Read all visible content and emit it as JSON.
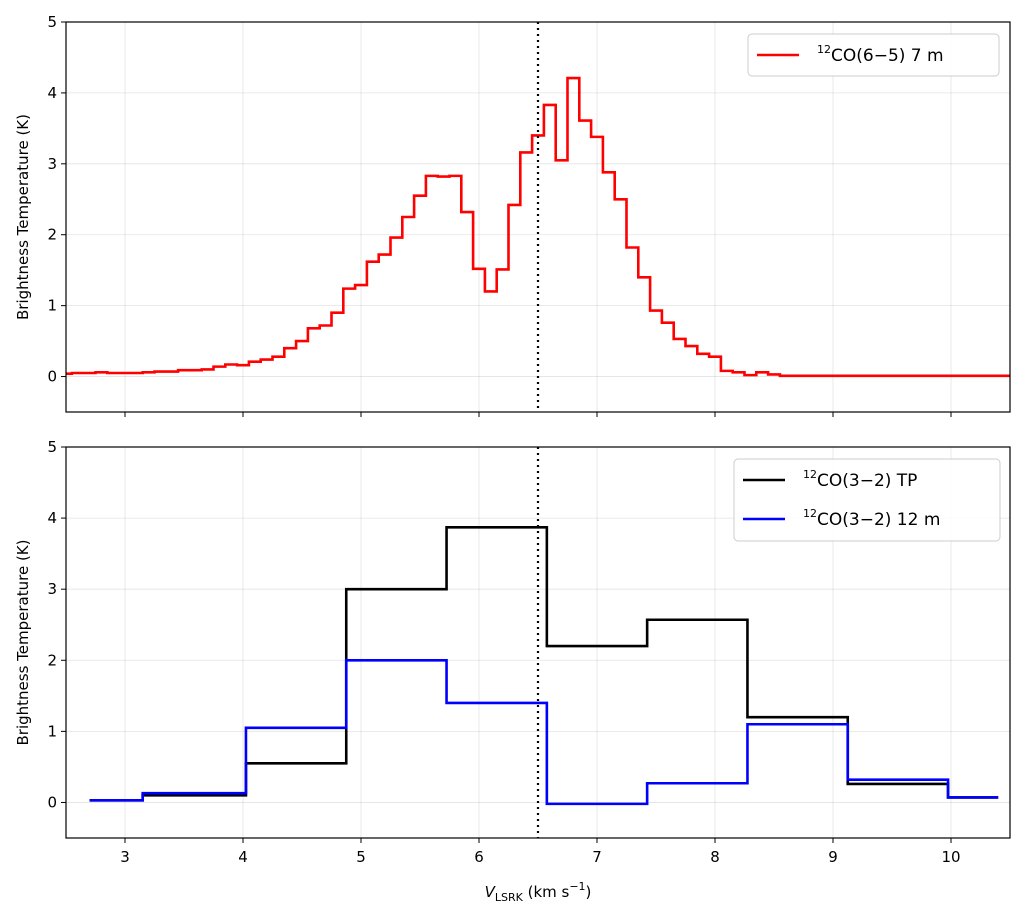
{
  "chart_data": [
    {
      "type": "line",
      "drawstyle": "steps-mid",
      "ylabel": "Brightness Temperature (K)",
      "xlim": [
        2.5,
        10.5
      ],
      "ylim": [
        -0.5,
        5
      ],
      "xticks": [
        3,
        4,
        5,
        6,
        7,
        8,
        9,
        10
      ],
      "yticks": [
        0,
        1,
        2,
        3,
        4,
        5
      ],
      "grid": true,
      "legend_position": "top-right",
      "vline": {
        "x": 6.5,
        "style": "dotted",
        "color": "#000000"
      },
      "series": [
        {
          "name": "CO(6−5) 7 m",
          "name_sup": "12",
          "color": "#ff0000",
          "x": [
            2.5,
            2.6,
            2.7,
            2.8,
            2.9,
            3.0,
            3.1,
            3.2,
            3.3,
            3.4,
            3.5,
            3.6,
            3.7,
            3.8,
            3.9,
            4.0,
            4.1,
            4.2,
            4.3,
            4.4,
            4.5,
            4.6,
            4.7,
            4.8,
            4.9,
            5.0,
            5.1,
            5.2,
            5.3,
            5.4,
            5.5,
            5.6,
            5.7,
            5.8,
            5.9,
            6.0,
            6.1,
            6.2,
            6.3,
            6.4,
            6.5,
            6.6,
            6.7,
            6.8,
            6.9,
            7.0,
            7.1,
            7.2,
            7.3,
            7.4,
            7.5,
            7.6,
            7.7,
            7.8,
            7.9,
            8.0,
            8.1,
            8.2,
            8.3,
            8.4,
            8.5,
            8.6,
            8.7,
            8.8,
            8.9,
            9.0,
            9.1,
            9.2,
            9.3,
            9.4,
            9.5,
            9.6,
            9.7,
            9.8,
            9.9,
            10.0,
            10.1,
            10.2,
            10.3,
            10.4,
            10.5
          ],
          "y": [
            0.04,
            0.05,
            0.05,
            0.06,
            0.05,
            0.05,
            0.05,
            0.06,
            0.07,
            0.07,
            0.09,
            0.09,
            0.1,
            0.14,
            0.17,
            0.16,
            0.21,
            0.24,
            0.28,
            0.4,
            0.5,
            0.68,
            0.72,
            0.9,
            1.24,
            1.29,
            1.62,
            1.72,
            1.96,
            2.25,
            2.55,
            2.83,
            2.82,
            2.83,
            2.32,
            1.52,
            1.2,
            1.51,
            2.42,
            3.16,
            3.4,
            3.83,
            3.05,
            4.21,
            3.61,
            3.38,
            2.88,
            2.5,
            1.82,
            1.4,
            0.93,
            0.76,
            0.53,
            0.43,
            0.32,
            0.28,
            0.08,
            0.06,
            0.02,
            0.06,
            0.03,
            0.01,
            0.01,
            0.01,
            0.01,
            0.01,
            0.01,
            0.01,
            0.01,
            0.01,
            0.01,
            0.01,
            0.01,
            0.01,
            0.01,
            0.01,
            0.01,
            0.01,
            0.01,
            0.01,
            0.01
          ]
        }
      ]
    },
    {
      "type": "line",
      "drawstyle": "steps-mid",
      "xlabel": "V",
      "xlabel_sub": "LSRK",
      "xlabel_unit": "(km s",
      "xlabel_unit_sup": "−1",
      "xlabel_unit_end": ")",
      "ylabel": "Brightness Temperature (K)",
      "xlim": [
        2.5,
        10.5
      ],
      "ylim": [
        -0.5,
        5
      ],
      "xticks": [
        3,
        4,
        5,
        6,
        7,
        8,
        9,
        10
      ],
      "yticks": [
        0,
        1,
        2,
        3,
        4,
        5
      ],
      "grid": true,
      "legend_position": "top-right",
      "vline": {
        "x": 6.5,
        "style": "dotted",
        "color": "#000000"
      },
      "series": [
        {
          "name": "CO(3−2) TP",
          "name_sup": "12",
          "color": "#000000",
          "x": [
            2.7,
            3.6,
            4.45,
            5.3,
            6.15,
            7.0,
            7.85,
            8.7,
            9.55,
            10.4
          ],
          "y": [
            0.03,
            0.1,
            0.55,
            3.0,
            3.87,
            2.2,
            2.57,
            1.2,
            0.26,
            0.07
          ]
        },
        {
          "name": "CO(3−2) 12 m",
          "name_sup": "12",
          "color": "#0000ff",
          "x": [
            2.7,
            3.6,
            4.45,
            5.3,
            6.15,
            7.0,
            7.85,
            8.7,
            9.55,
            10.4
          ],
          "y": [
            0.03,
            0.13,
            1.05,
            2.0,
            1.4,
            -0.02,
            0.27,
            1.1,
            0.32,
            0.07
          ]
        }
      ]
    }
  ]
}
